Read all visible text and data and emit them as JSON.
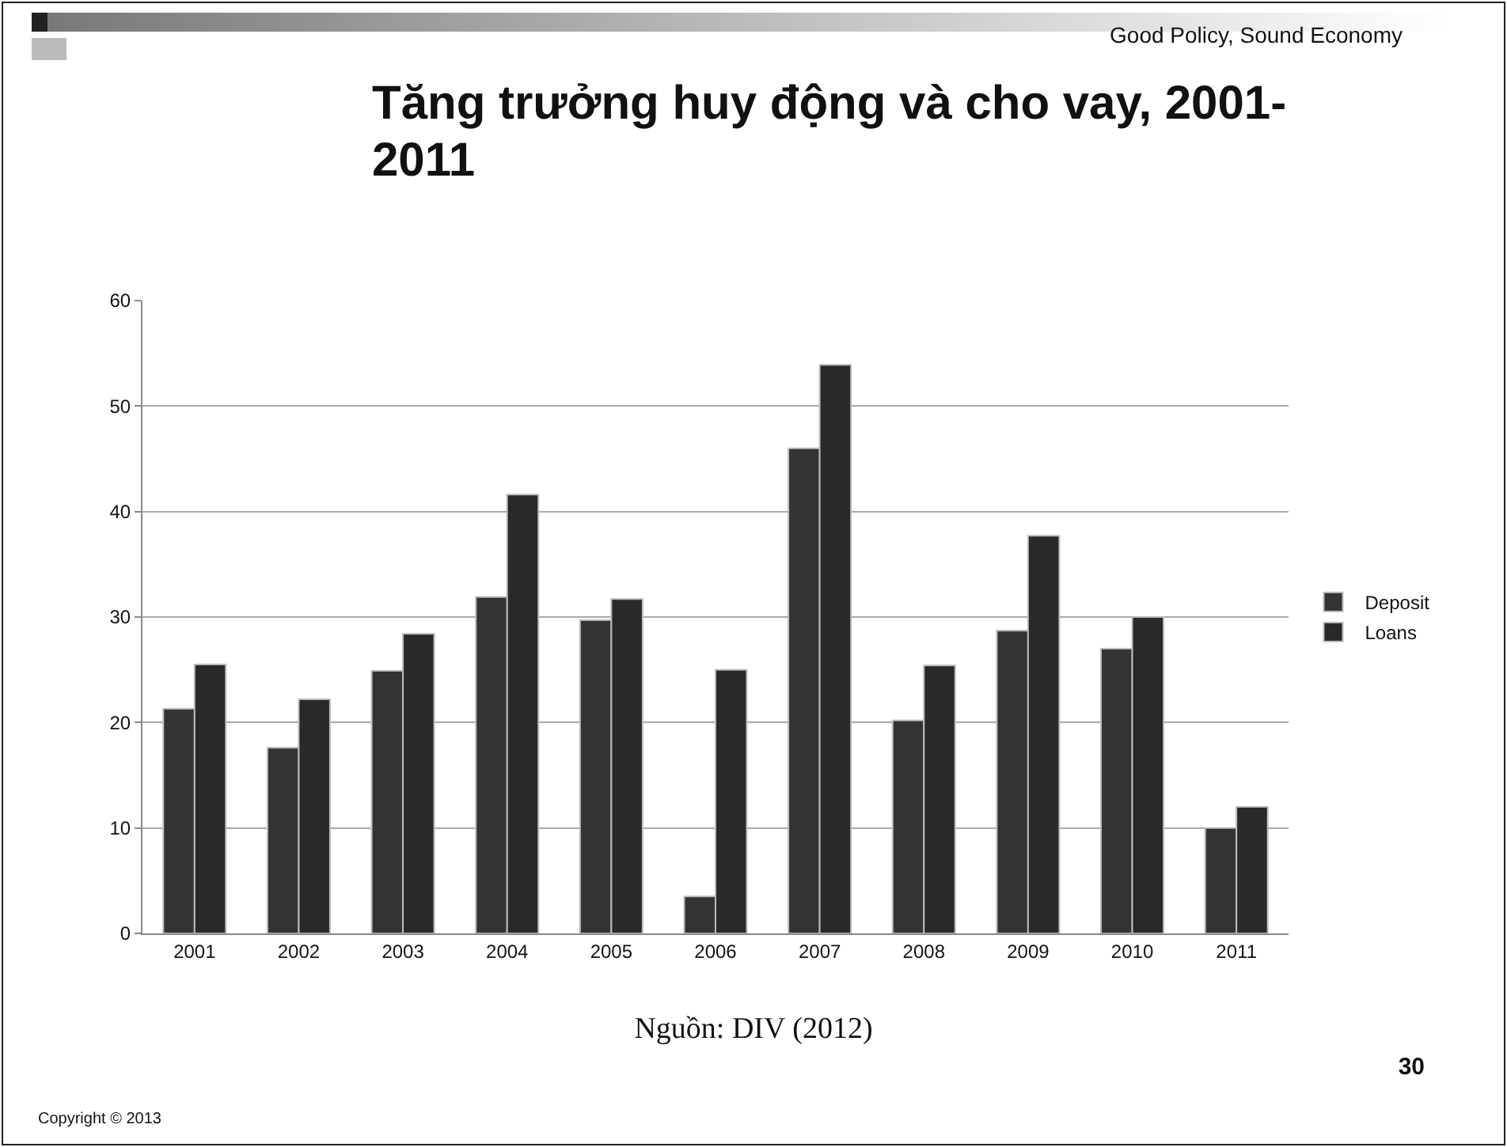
{
  "chart_data": {
    "type": "bar",
    "title": "Tăng trưởng huy động và cho vay, 2001-2011",
    "categories": [
      "2001",
      "2002",
      "2003",
      "2004",
      "2005",
      "2006",
      "2007",
      "2008",
      "2009",
      "2010",
      "2011"
    ],
    "series": [
      {
        "name": "Deposit",
        "color": "#333333",
        "values": [
          21.3,
          17.6,
          24.9,
          31.9,
          29.7,
          3.5,
          46.0,
          20.2,
          28.7,
          27.0,
          10.0
        ]
      },
      {
        "name": "Loans",
        "color": "#292929",
        "values": [
          25.5,
          22.2,
          28.4,
          41.6,
          31.7,
          25.0,
          53.9,
          25.4,
          37.7,
          30.0,
          12.0
        ]
      }
    ],
    "ylim": [
      0,
      60
    ],
    "yticks": [
      0,
      10,
      20,
      30,
      40,
      50,
      60
    ],
    "grid": "y",
    "legend": "right",
    "annotations": [
      "Good Policy, Sound Economy",
      "Nguồn: DIV (2012)",
      "Copyright © 2013",
      "30"
    ]
  }
}
